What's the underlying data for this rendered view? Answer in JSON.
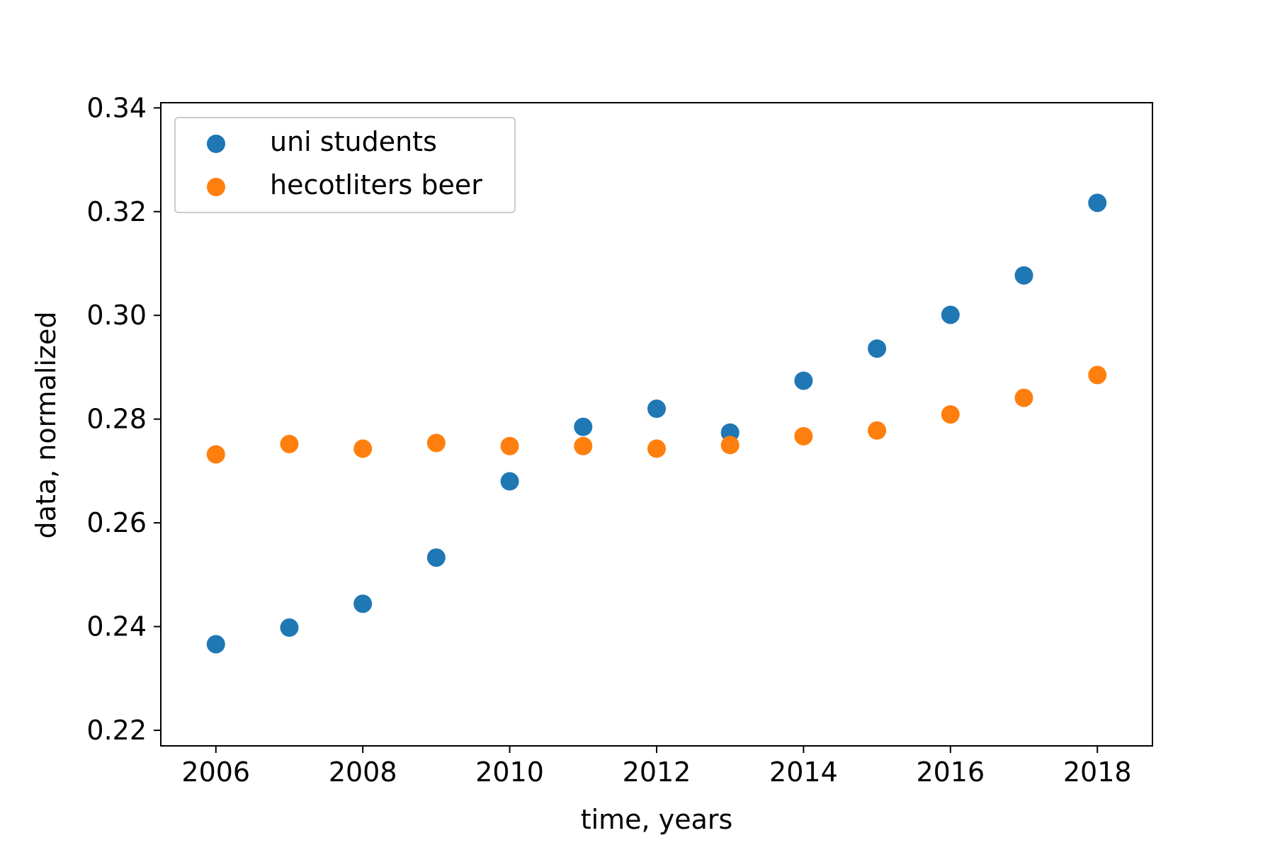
{
  "chart_data": {
    "type": "scatter",
    "title": "",
    "xlabel": "time, years",
    "ylabel": "data, normalized",
    "xlim": [
      2005.25,
      2018.75
    ],
    "ylim": [
      0.217,
      0.341
    ],
    "xticks": [
      2006,
      2008,
      2010,
      2012,
      2014,
      2016,
      2018
    ],
    "xtick_labels": [
      "2006",
      "2008",
      "2010",
      "2012",
      "2014",
      "2016",
      "2018"
    ],
    "yticks": [
      0.22,
      0.24,
      0.26,
      0.28,
      0.3,
      0.32,
      0.34
    ],
    "ytick_labels": [
      "0.22",
      "0.24",
      "0.26",
      "0.28",
      "0.30",
      "0.32",
      "0.34"
    ],
    "grid": false,
    "legend_position": "upper-left",
    "x": [
      2006,
      2007,
      2008,
      2009,
      2010,
      2011,
      2012,
      2013,
      2014,
      2015,
      2016,
      2017,
      2018
    ],
    "series": [
      {
        "name": "uni students",
        "color": "#1f77b4",
        "values": [
          0.2366,
          0.2398,
          0.2444,
          0.2533,
          0.268,
          0.2785,
          0.282,
          0.2774,
          0.2874,
          0.2936,
          0.3001,
          0.3077,
          0.3217
        ]
      },
      {
        "name": "hecotliters beer",
        "color": "#ff7f0e",
        "values": [
          0.2732,
          0.2752,
          0.2743,
          0.2754,
          0.2748,
          0.2748,
          0.2743,
          0.275,
          0.2767,
          0.2778,
          0.2809,
          0.2841,
          0.2885
        ]
      }
    ]
  }
}
